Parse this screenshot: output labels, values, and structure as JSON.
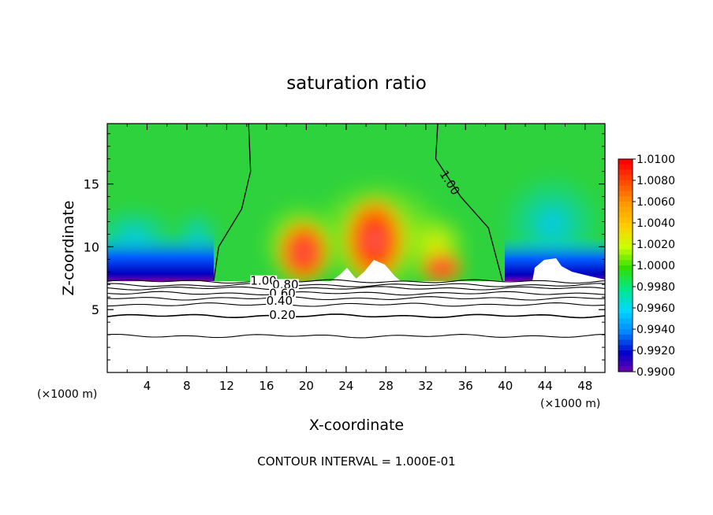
{
  "chart_data": {
    "type": "heatmap",
    "title": "saturation ratio",
    "xlabel": "X-coordinate",
    "ylabel": "Z-coordinate",
    "x_unit_left": "(×1000 m)",
    "x_unit_right": "(×1000 m)",
    "xlim": [
      0,
      50
    ],
    "ylim": [
      0,
      19.8
    ],
    "x_ticks": [
      4,
      8,
      12,
      16,
      20,
      24,
      28,
      32,
      36,
      40,
      44,
      48
    ],
    "x_tick_labels": [
      "4",
      "8",
      "12",
      "16",
      "20",
      "24",
      "28",
      "32",
      "36",
      "40",
      "44",
      "48"
    ],
    "y_ticks": [
      5,
      10,
      15
    ],
    "y_tick_labels": [
      "5",
      "10",
      "15"
    ],
    "colorbar": {
      "levels": [
        "1.0100",
        "1.0080",
        "1.0060",
        "1.0040",
        "1.0020",
        "1.0000",
        "0.9980",
        "0.9960",
        "0.9940",
        "0.9920",
        "0.9900"
      ],
      "colors": [
        "#ff0000",
        "#ff4d00",
        "#ff9900",
        "#ffcc00",
        "#ccff00",
        "#33dd00",
        "#00e88a",
        "#00d8ff",
        "#0088ff",
        "#0000cc",
        "#7a00a8"
      ]
    },
    "contour_labels": [
      {
        "text": "1.00",
        "x": 15.7,
        "z": 7.1
      },
      {
        "text": "0.80",
        "x": 17.9,
        "z": 6.8
      },
      {
        "text": "0.60",
        "x": 17.6,
        "z": 6.1
      },
      {
        "text": "0.40",
        "x": 17.3,
        "z": 5.5
      },
      {
        "text": "0.20",
        "x": 17.6,
        "z": 4.4
      },
      {
        "text": "1.00",
        "x": 34.2,
        "z": 15.0
      }
    ],
    "boundary_contour_1_00_left": [
      [
        14.2,
        19.8
      ],
      [
        14.4,
        16
      ],
      [
        13.5,
        13
      ],
      [
        11.2,
        10
      ],
      [
        10.7,
        7.3
      ]
    ],
    "boundary_contour_1_00_right": [
      [
        33.2,
        19.8
      ],
      [
        33.0,
        17
      ],
      [
        35.5,
        14
      ],
      [
        38.3,
        11.5
      ],
      [
        39.7,
        7.3
      ]
    ],
    "lower_layer_top_z": 7.3,
    "contour_interval_text": "CONTOUR INTERVAL = 1.000E-01"
  }
}
